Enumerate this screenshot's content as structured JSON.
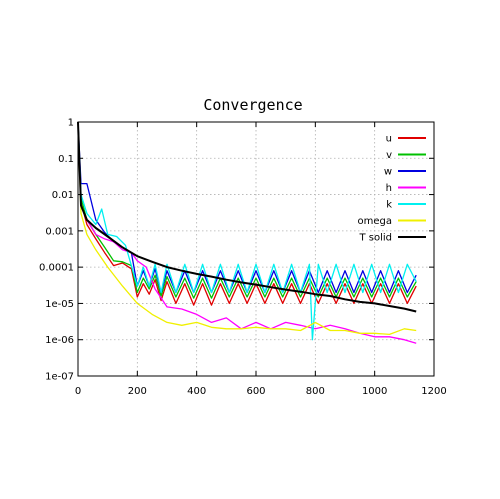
{
  "chart_data": {
    "type": "line",
    "title": "Convergence",
    "xlabel": "",
    "ylabel": "",
    "xlim": [
      0,
      1200
    ],
    "ylim": [
      1e-07,
      1
    ],
    "yscale": "log",
    "grid": true,
    "legend_position": "top-right",
    "x_ticks": [
      0,
      200,
      400,
      600,
      800,
      1000,
      1200
    ],
    "x_tick_labels": [
      "0",
      "200",
      "400",
      "600",
      "800",
      "1000",
      "1200"
    ],
    "y_ticks": [
      1,
      0.1,
      0.01,
      0.001,
      0.0001,
      1e-05,
      1e-06,
      1e-07
    ],
    "y_tick_labels": [
      "1",
      "0.1",
      "0.01",
      "0.001",
      "0.0001",
      "1e-05",
      "1e-06",
      "1e-07"
    ],
    "series": [
      {
        "name": "u",
        "color": "#e00000",
        "x": [
          0,
          10,
          30,
          60,
          90,
          120,
          150,
          180,
          200,
          220,
          240,
          260,
          280,
          300,
          330,
          360,
          390,
          420,
          450,
          480,
          510,
          540,
          570,
          600,
          630,
          660,
          690,
          720,
          750,
          780,
          810,
          840,
          870,
          900,
          930,
          960,
          990,
          1020,
          1050,
          1080,
          1110,
          1140
        ],
        "y": [
          1,
          0.006,
          0.0015,
          0.0006,
          0.00025,
          0.00011,
          0.00013,
          9e-05,
          1.5e-05,
          3.5e-05,
          1.8e-05,
          4.5e-05,
          1.2e-05,
          4e-05,
          1e-05,
          3.5e-05,
          9e-06,
          3.5e-05,
          9e-06,
          3.5e-05,
          1e-05,
          3.5e-05,
          1e-05,
          3.5e-05,
          1e-05,
          3.5e-05,
          1e-05,
          3.5e-05,
          1e-05,
          3.5e-05,
          1e-05,
          3.5e-05,
          1e-05,
          3.5e-05,
          1e-05,
          3.5e-05,
          1e-05,
          3.5e-05,
          1e-05,
          3.5e-05,
          1e-05,
          3e-05
        ]
      },
      {
        "name": "v",
        "color": "#00c000",
        "x": [
          0,
          10,
          30,
          60,
          90,
          120,
          150,
          180,
          200,
          220,
          240,
          260,
          280,
          300,
          330,
          360,
          390,
          420,
          450,
          480,
          510,
          540,
          570,
          600,
          630,
          660,
          690,
          720,
          750,
          780,
          810,
          840,
          870,
          900,
          930,
          960,
          990,
          1020,
          1050,
          1080,
          1110,
          1140
        ],
        "y": [
          1,
          0.008,
          0.002,
          0.0008,
          0.00035,
          0.00015,
          0.00014,
          0.00011,
          2e-05,
          5e-05,
          2.5e-05,
          6e-05,
          1.6e-05,
          5.5e-05,
          1.5e-05,
          5e-05,
          1.4e-05,
          5e-05,
          1.4e-05,
          5e-05,
          1.5e-05,
          5e-05,
          1.5e-05,
          5e-05,
          1.5e-05,
          5e-05,
          1.5e-05,
          5e-05,
          1.5e-05,
          5e-05,
          1.5e-05,
          5e-05,
          1.5e-05,
          5e-05,
          1.5e-05,
          5e-05,
          1.5e-05,
          5e-05,
          1.5e-05,
          5e-05,
          1.5e-05,
          4e-05
        ]
      },
      {
        "name": "w",
        "color": "#0000e0",
        "x": [
          0,
          10,
          30,
          60,
          90,
          120,
          150,
          180,
          200,
          220,
          240,
          260,
          280,
          300,
          330,
          360,
          390,
          420,
          450,
          480,
          510,
          540,
          570,
          600,
          630,
          660,
          690,
          720,
          750,
          780,
          810,
          840,
          870,
          900,
          930,
          960,
          990,
          1020,
          1050,
          1080,
          1110,
          1140
        ],
        "y": [
          1,
          0.02,
          0.02,
          0.002,
          0.0009,
          0.0005,
          0.00035,
          0.00025,
          3e-05,
          8e-05,
          3e-05,
          9e-05,
          2e-05,
          8e-05,
          2e-05,
          8e-05,
          2e-05,
          8e-05,
          2e-05,
          8e-05,
          2e-05,
          8e-05,
          2e-05,
          8e-05,
          2e-05,
          8e-05,
          2e-05,
          8e-05,
          2e-05,
          8e-05,
          2e-05,
          8e-05,
          2e-05,
          8e-05,
          2e-05,
          8e-05,
          2e-05,
          8e-05,
          2e-05,
          8e-05,
          2e-05,
          6e-05
        ]
      },
      {
        "name": "h",
        "color": "#ff00ff",
        "x": [
          0,
          10,
          30,
          60,
          90,
          120,
          150,
          180,
          200,
          230,
          260,
          300,
          350,
          400,
          450,
          500,
          550,
          600,
          650,
          700,
          750,
          800,
          850,
          900,
          950,
          1000,
          1050,
          1100,
          1140
        ],
        "y": [
          1,
          0.005,
          0.002,
          0.0008,
          0.0006,
          0.0005,
          0.0003,
          0.00025,
          0.00015,
          0.0001,
          2.5e-05,
          8e-06,
          7e-06,
          5e-06,
          3e-06,
          4e-06,
          2e-06,
          3e-06,
          2e-06,
          3e-06,
          2.5e-06,
          2e-06,
          2.5e-06,
          2e-06,
          1.5e-06,
          1.2e-06,
          1.2e-06,
          1e-06,
          8e-07
        ]
      },
      {
        "name": "k",
        "color": "#00f0f0",
        "x": [
          0,
          10,
          30,
          60,
          80,
          100,
          130,
          160,
          200,
          220,
          240,
          260,
          280,
          300,
          330,
          360,
          390,
          420,
          450,
          480,
          510,
          540,
          570,
          600,
          630,
          660,
          690,
          720,
          750,
          780,
          790,
          810,
          840,
          870,
          900,
          930,
          960,
          990,
          1020,
          1050,
          1080,
          1110,
          1140
        ],
        "y": [
          1,
          0.01,
          0.003,
          0.0015,
          0.004,
          0.0008,
          0.0007,
          0.0004,
          3e-05,
          0.0001,
          3e-05,
          0.00012,
          2e-05,
          0.00012,
          2e-05,
          0.00012,
          2e-05,
          0.00012,
          2e-05,
          0.00012,
          2e-05,
          0.00012,
          2e-05,
          0.00012,
          2e-05,
          0.00012,
          2e-05,
          0.00012,
          2e-05,
          0.00012,
          1e-06,
          0.00012,
          2e-05,
          0.00012,
          2e-05,
          0.00012,
          2e-05,
          0.00012,
          2e-05,
          0.00012,
          2e-05,
          0.00012,
          4e-05
        ]
      },
      {
        "name": "omega",
        "color": "#f0f000",
        "x": [
          0,
          10,
          30,
          60,
          100,
          150,
          200,
          250,
          300,
          350,
          400,
          450,
          500,
          550,
          600,
          650,
          700,
          750,
          800,
          850,
          900,
          950,
          1000,
          1050,
          1100,
          1140
        ],
        "y": [
          1,
          0.003,
          0.0008,
          0.0003,
          0.0001,
          3e-05,
          1e-05,
          5e-06,
          3e-06,
          2.5e-06,
          3e-06,
          2.2e-06,
          2e-06,
          2e-06,
          2.2e-06,
          2e-06,
          2e-06,
          1.8e-06,
          3e-06,
          1.8e-06,
          1.8e-06,
          1.5e-06,
          1.5e-06,
          1.4e-06,
          2e-06,
          1.8e-06
        ]
      },
      {
        "name": "T solid",
        "color": "#000000",
        "x": [
          0,
          10,
          30,
          60,
          100,
          150,
          200,
          250,
          300,
          350,
          400,
          450,
          500,
          550,
          600,
          650,
          700,
          750,
          800,
          850,
          900,
          950,
          1000,
          1050,
          1100,
          1140
        ],
        "y": [
          1,
          0.005,
          0.002,
          0.0012,
          0.0007,
          0.00035,
          0.0002,
          0.00014,
          0.0001,
          8e-05,
          6.5e-05,
          5.5e-05,
          4.5e-05,
          3.8e-05,
          3.3e-05,
          2.8e-05,
          2.4e-05,
          2.1e-05,
          1.8e-05,
          1.6e-05,
          1.3e-05,
          1.1e-05,
          1e-05,
          8.5e-06,
          7.2e-06,
          6e-06
        ]
      }
    ]
  }
}
